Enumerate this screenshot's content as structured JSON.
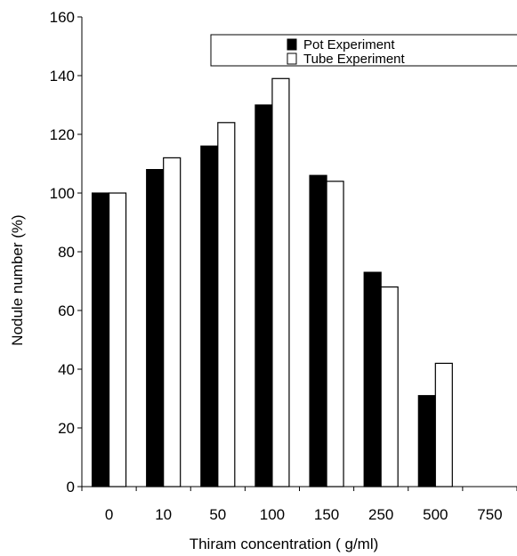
{
  "chart_data": {
    "type": "bar",
    "xlabel": "Thiram concentration ( g/ml)",
    "ylabel": "Nodule number (%)",
    "ylim": [
      0,
      160
    ],
    "yticks": [
      0,
      20,
      40,
      60,
      80,
      100,
      120,
      140,
      160
    ],
    "categories": [
      "0",
      "10",
      "50",
      "100",
      "150",
      "250",
      "500",
      "750"
    ],
    "series": [
      {
        "name": "Pot Experiment",
        "color": "#000000",
        "values": [
          100,
          108,
          116,
          130,
          106,
          73,
          31,
          null
        ]
      },
      {
        "name": "Tube Experiment",
        "color": "#ffffff",
        "values": [
          100,
          112,
          124,
          139,
          104,
          68,
          42,
          null
        ]
      }
    ],
    "legend_position": "top-right",
    "grid": false
  }
}
